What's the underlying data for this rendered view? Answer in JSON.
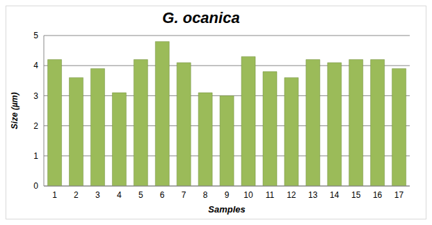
{
  "chart_data": {
    "type": "bar",
    "title": "G. ocanica",
    "x_label": "Samples",
    "y_label": "Size (µm)",
    "categories": [
      "1",
      "2",
      "3",
      "4",
      "5",
      "6",
      "7",
      "8",
      "9",
      "10",
      "11",
      "12",
      "13",
      "14",
      "15",
      "16",
      "17"
    ],
    "values": [
      4.2,
      3.6,
      3.9,
      3.1,
      4.2,
      4.8,
      4.1,
      3.1,
      3.0,
      4.3,
      3.8,
      3.6,
      4.2,
      4.1,
      4.2,
      4.2,
      3.9
    ],
    "color": "#9bbb59",
    "ylim": [
      0,
      5
    ],
    "yticks": [
      0,
      1,
      2,
      3,
      4,
      5
    ],
    "grid": true
  }
}
